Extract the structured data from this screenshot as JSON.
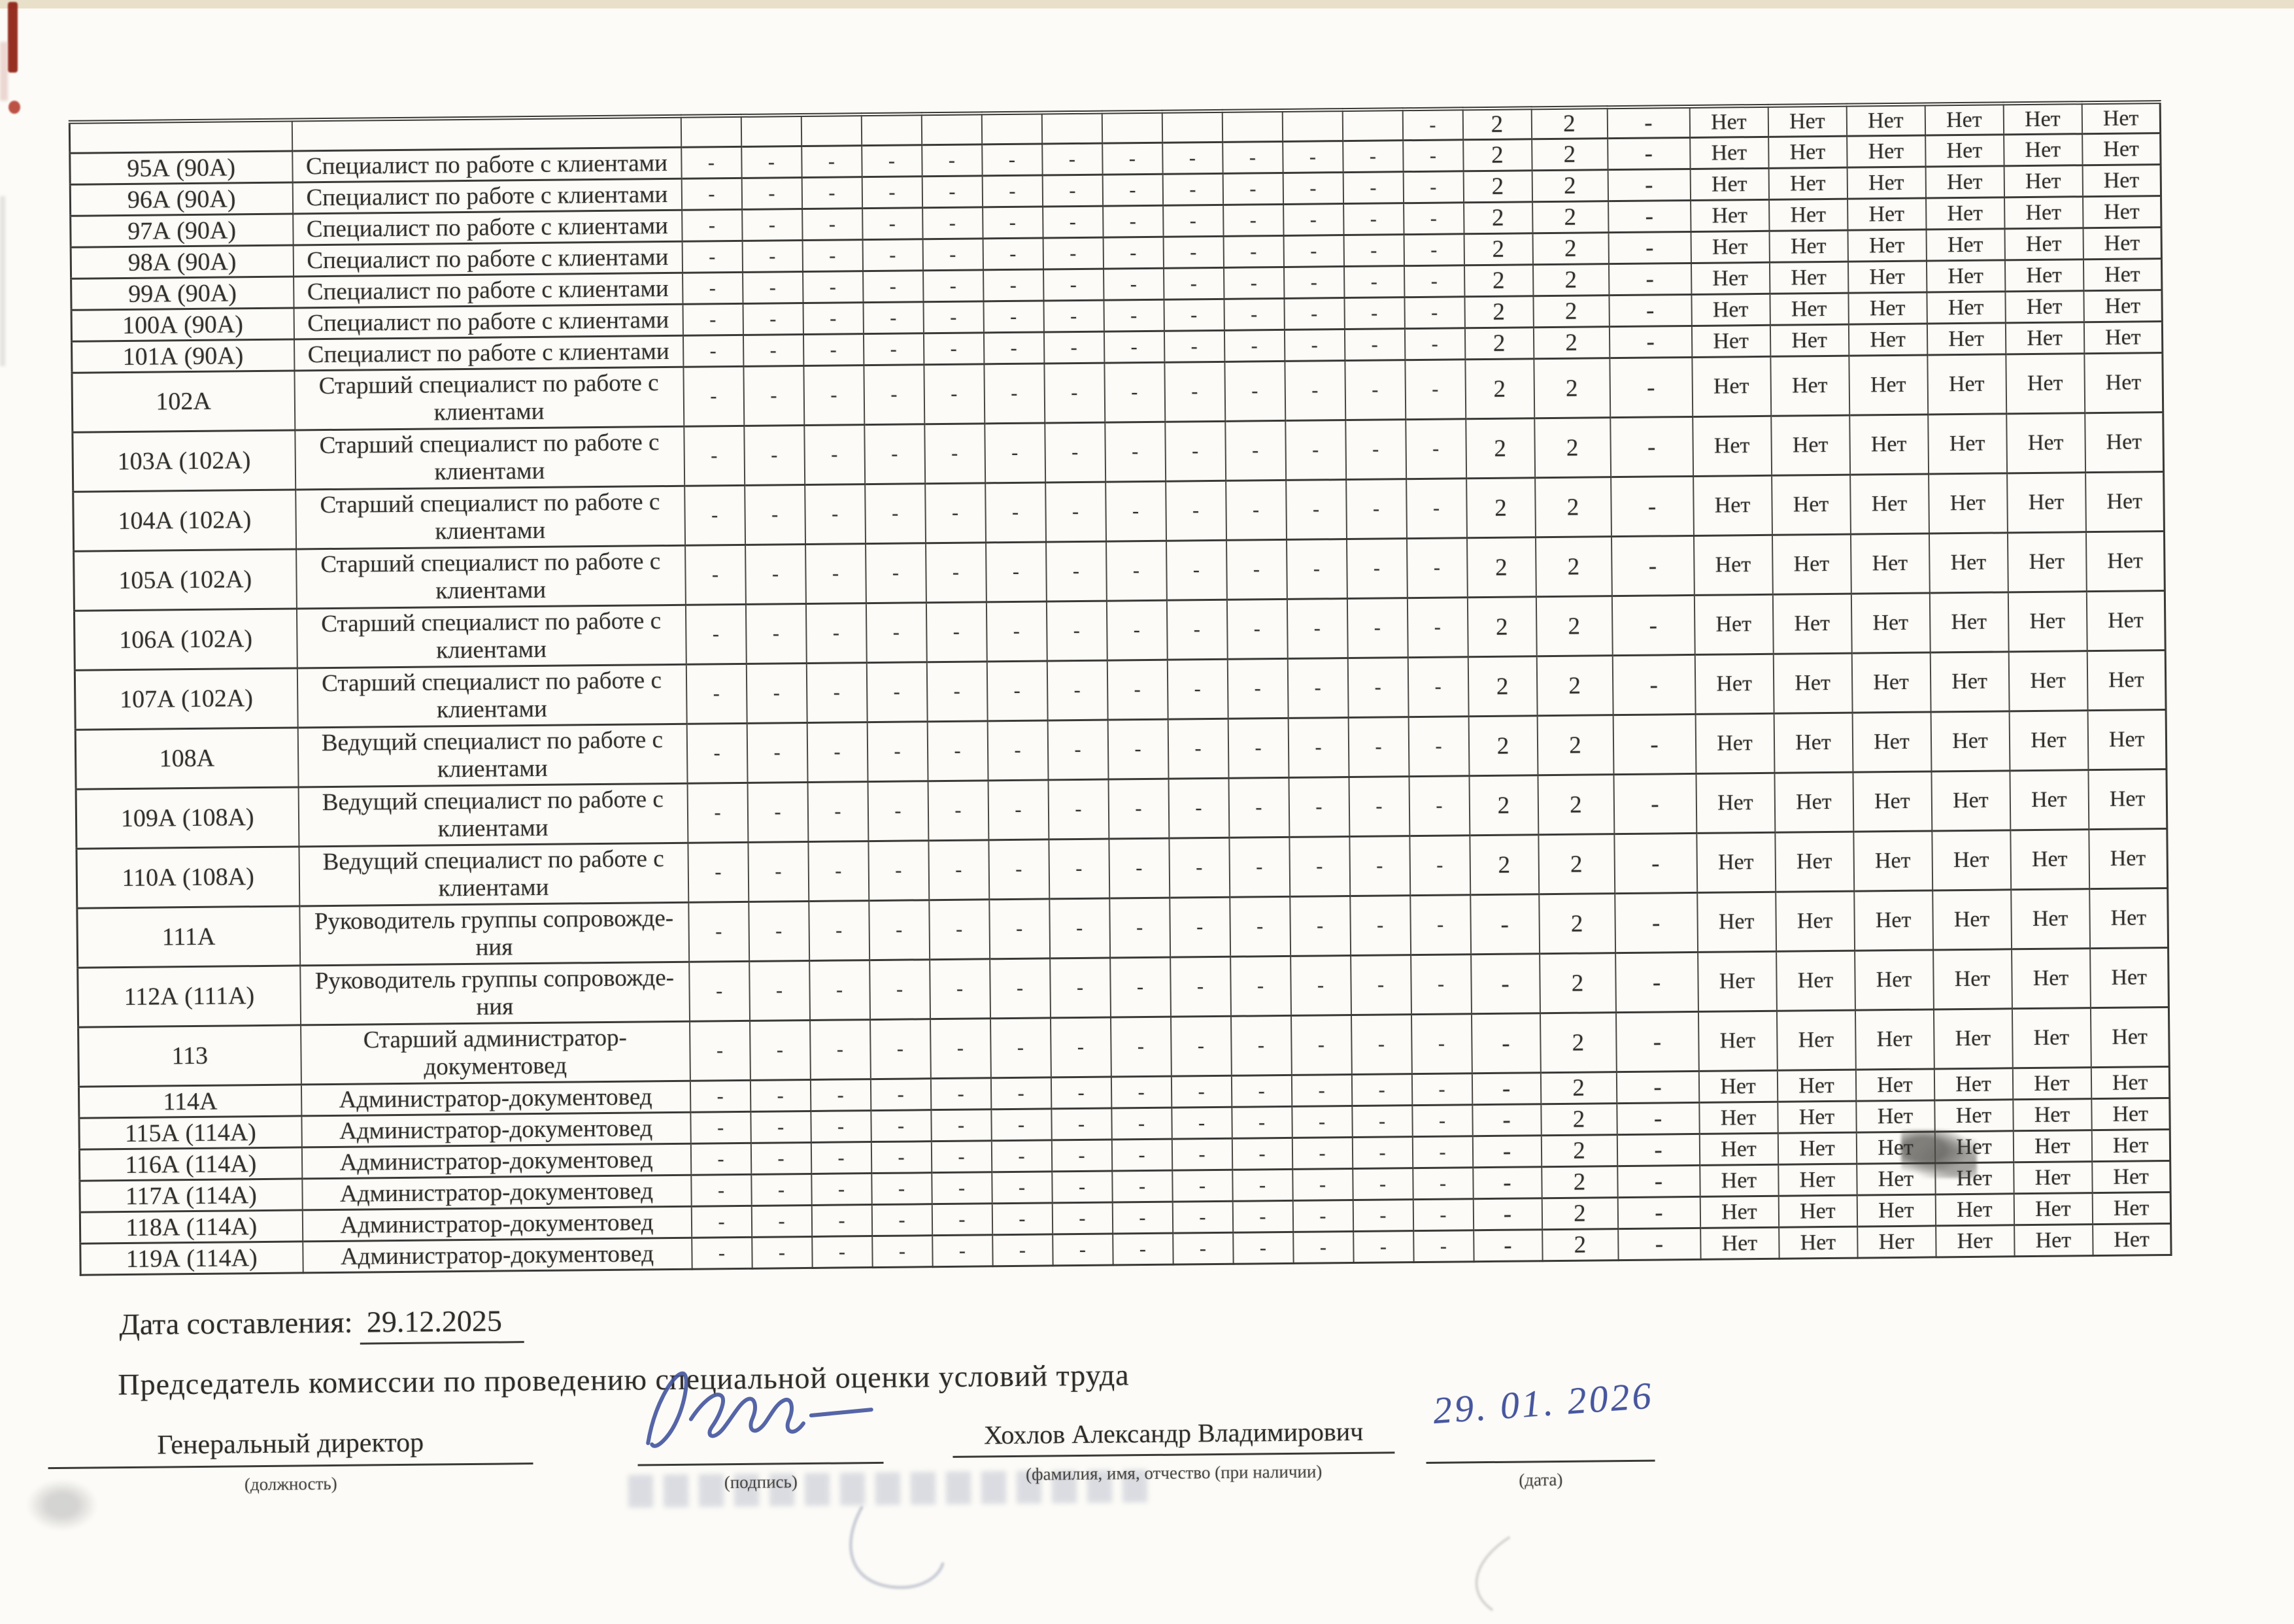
{
  "page": {
    "date_line": {
      "label": "Дата составления:",
      "value": "29.12.2025"
    },
    "chairman_heading": "Председатель комиссии по проведению специальной оценки условий труда",
    "signature_block": {
      "position_value": "Генеральный директор",
      "position_caption": "(должность)",
      "signature_caption": "(подпись)",
      "name_value": "Хохлов Александр Владимирович",
      "name_caption": "(фамилия, имя, отчество (при наличии)",
      "handwritten_date": "29. 01. 2026",
      "date_caption": "(дата)"
    },
    "ink_colors": {
      "handwriting_blue": "#47569f",
      "stamp_red": "#8e1f12"
    }
  },
  "table": {
    "rows": [
      {
        "num": "",
        "title_lines": [],
        "kind": "partial",
        "factors": [
          "",
          "",
          "",
          "",
          "",
          "",
          "",
          "",
          "",
          "",
          "",
          "",
          "-"
        ],
        "final": [
          "2",
          "2",
          "-"
        ],
        "benefits": [
          "Нет",
          "Нет",
          "Нет",
          "Нет",
          "Нет",
          "Нет"
        ]
      },
      {
        "num": "95А (90А)",
        "title_lines": [
          "Специалист по работе с клиентами"
        ],
        "kind": "short",
        "factors": [
          "-",
          "-",
          "-",
          "-",
          "-",
          "-",
          "-",
          "-",
          "-",
          "-",
          "-",
          "-",
          "-"
        ],
        "final": [
          "2",
          "2",
          "-"
        ],
        "benefits": [
          "Нет",
          "Нет",
          "Нет",
          "Нет",
          "Нет",
          "Нет"
        ]
      },
      {
        "num": "96А (90А)",
        "title_lines": [
          "Специалист по работе с клиентами"
        ],
        "kind": "short",
        "factors": [
          "-",
          "-",
          "-",
          "-",
          "-",
          "-",
          "-",
          "-",
          "-",
          "-",
          "-",
          "-",
          "-"
        ],
        "final": [
          "2",
          "2",
          "-"
        ],
        "benefits": [
          "Нет",
          "Нет",
          "Нет",
          "Нет",
          "Нет",
          "Нет"
        ]
      },
      {
        "num": "97А (90А)",
        "title_lines": [
          "Специалист по работе с клиентами"
        ],
        "kind": "short",
        "factors": [
          "-",
          "-",
          "-",
          "-",
          "-",
          "-",
          "-",
          "-",
          "-",
          "-",
          "-",
          "-",
          "-"
        ],
        "final": [
          "2",
          "2",
          "-"
        ],
        "benefits": [
          "Нет",
          "Нет",
          "Нет",
          "Нет",
          "Нет",
          "Нет"
        ]
      },
      {
        "num": "98А (90А)",
        "title_lines": [
          "Специалист по работе с клиентами"
        ],
        "kind": "short",
        "factors": [
          "-",
          "-",
          "-",
          "-",
          "-",
          "-",
          "-",
          "-",
          "-",
          "-",
          "-",
          "-",
          "-"
        ],
        "final": [
          "2",
          "2",
          "-"
        ],
        "benefits": [
          "Нет",
          "Нет",
          "Нет",
          "Нет",
          "Нет",
          "Нет"
        ]
      },
      {
        "num": "99А (90А)",
        "title_lines": [
          "Специалист по работе с клиентами"
        ],
        "kind": "short",
        "factors": [
          "-",
          "-",
          "-",
          "-",
          "-",
          "-",
          "-",
          "-",
          "-",
          "-",
          "-",
          "-",
          "-"
        ],
        "final": [
          "2",
          "2",
          "-"
        ],
        "benefits": [
          "Нет",
          "Нет",
          "Нет",
          "Нет",
          "Нет",
          "Нет"
        ]
      },
      {
        "num": "100А (90А)",
        "title_lines": [
          "Специалист по работе с клиентами"
        ],
        "kind": "short",
        "factors": [
          "-",
          "-",
          "-",
          "-",
          "-",
          "-",
          "-",
          "-",
          "-",
          "-",
          "-",
          "-",
          "-"
        ],
        "final": [
          "2",
          "2",
          "-"
        ],
        "benefits": [
          "Нет",
          "Нет",
          "Нет",
          "Нет",
          "Нет",
          "Нет"
        ]
      },
      {
        "num": "101А (90А)",
        "title_lines": [
          "Специалист по работе с клиентами"
        ],
        "kind": "short",
        "factors": [
          "-",
          "-",
          "-",
          "-",
          "-",
          "-",
          "-",
          "-",
          "-",
          "-",
          "-",
          "-",
          "-"
        ],
        "final": [
          "2",
          "2",
          "-"
        ],
        "benefits": [
          "Нет",
          "Нет",
          "Нет",
          "Нет",
          "Нет",
          "Нет"
        ]
      },
      {
        "num": "102А",
        "title_lines": [
          "Старший специалист по работе с",
          "клиентами"
        ],
        "kind": "tall",
        "factors": [
          "-",
          "-",
          "-",
          "-",
          "-",
          "-",
          "-",
          "-",
          "-",
          "-",
          "-",
          "-",
          "-"
        ],
        "final": [
          "2",
          "2",
          "-"
        ],
        "benefits": [
          "Нет",
          "Нет",
          "Нет",
          "Нет",
          "Нет",
          "Нет"
        ]
      },
      {
        "num": "103А (102А)",
        "title_lines": [
          "Старший специалист по работе с",
          "клиентами"
        ],
        "kind": "tall",
        "factors": [
          "-",
          "-",
          "-",
          "-",
          "-",
          "-",
          "-",
          "-",
          "-",
          "-",
          "-",
          "-",
          "-"
        ],
        "final": [
          "2",
          "2",
          "-"
        ],
        "benefits": [
          "Нет",
          "Нет",
          "Нет",
          "Нет",
          "Нет",
          "Нет"
        ]
      },
      {
        "num": "104А (102А)",
        "title_lines": [
          "Старший специалист по работе с",
          "клиентами"
        ],
        "kind": "tall",
        "factors": [
          "-",
          "-",
          "-",
          "-",
          "-",
          "-",
          "-",
          "-",
          "-",
          "-",
          "-",
          "-",
          "-"
        ],
        "final": [
          "2",
          "2",
          "-"
        ],
        "benefits": [
          "Нет",
          "Нет",
          "Нет",
          "Нет",
          "Нет",
          "Нет"
        ]
      },
      {
        "num": "105А (102А)",
        "title_lines": [
          "Старший специалист по работе с",
          "клиентами"
        ],
        "kind": "tall",
        "factors": [
          "-",
          "-",
          "-",
          "-",
          "-",
          "-",
          "-",
          "-",
          "-",
          "-",
          "-",
          "-",
          "-"
        ],
        "final": [
          "2",
          "2",
          "-"
        ],
        "benefits": [
          "Нет",
          "Нет",
          "Нет",
          "Нет",
          "Нет",
          "Нет"
        ]
      },
      {
        "num": "106А (102А)",
        "title_lines": [
          "Старший специалист по работе с",
          "клиентами"
        ],
        "kind": "tall",
        "factors": [
          "-",
          "-",
          "-",
          "-",
          "-",
          "-",
          "-",
          "-",
          "-",
          "-",
          "-",
          "-",
          "-"
        ],
        "final": [
          "2",
          "2",
          "-"
        ],
        "benefits": [
          "Нет",
          "Нет",
          "Нет",
          "Нет",
          "Нет",
          "Нет"
        ]
      },
      {
        "num": "107А (102А)",
        "title_lines": [
          "Старший специалист по работе с",
          "клиентами"
        ],
        "kind": "tall",
        "factors": [
          "-",
          "-",
          "-",
          "-",
          "-",
          "-",
          "-",
          "-",
          "-",
          "-",
          "-",
          "-",
          "-"
        ],
        "final": [
          "2",
          "2",
          "-"
        ],
        "benefits": [
          "Нет",
          "Нет",
          "Нет",
          "Нет",
          "Нет",
          "Нет"
        ]
      },
      {
        "num": "108А",
        "title_lines": [
          "Ведущий специалист по работе с",
          "клиентами"
        ],
        "kind": "tall",
        "factors": [
          "-",
          "-",
          "-",
          "-",
          "-",
          "-",
          "-",
          "-",
          "-",
          "-",
          "-",
          "-",
          "-"
        ],
        "final": [
          "2",
          "2",
          "-"
        ],
        "benefits": [
          "Нет",
          "Нет",
          "Нет",
          "Нет",
          "Нет",
          "Нет"
        ]
      },
      {
        "num": "109А (108А)",
        "title_lines": [
          "Ведущий специалист по работе с",
          "клиентами"
        ],
        "kind": "tall",
        "factors": [
          "-",
          "-",
          "-",
          "-",
          "-",
          "-",
          "-",
          "-",
          "-",
          "-",
          "-",
          "-",
          "-"
        ],
        "final": [
          "2",
          "2",
          "-"
        ],
        "benefits": [
          "Нет",
          "Нет",
          "Нет",
          "Нет",
          "Нет",
          "Нет"
        ]
      },
      {
        "num": "110А (108А)",
        "title_lines": [
          "Ведущий специалист по работе с",
          "клиентами"
        ],
        "kind": "tall",
        "factors": [
          "-",
          "-",
          "-",
          "-",
          "-",
          "-",
          "-",
          "-",
          "-",
          "-",
          "-",
          "-",
          "-"
        ],
        "final": [
          "2",
          "2",
          "-"
        ],
        "benefits": [
          "Нет",
          "Нет",
          "Нет",
          "Нет",
          "Нет",
          "Нет"
        ]
      },
      {
        "num": "111А",
        "title_lines": [
          "Руководитель группы сопровожде-",
          "ния"
        ],
        "kind": "tall",
        "factors": [
          "-",
          "-",
          "-",
          "-",
          "-",
          "-",
          "-",
          "-",
          "-",
          "-",
          "-",
          "-",
          "-"
        ],
        "final": [
          "-",
          "2",
          "-"
        ],
        "benefits": [
          "Нет",
          "Нет",
          "Нет",
          "Нет",
          "Нет",
          "Нет"
        ]
      },
      {
        "num": "112А (111А)",
        "title_lines": [
          "Руководитель группы сопровожде-",
          "ния"
        ],
        "kind": "tall",
        "factors": [
          "-",
          "-",
          "-",
          "-",
          "-",
          "-",
          "-",
          "-",
          "-",
          "-",
          "-",
          "-",
          "-"
        ],
        "final": [
          "-",
          "2",
          "-"
        ],
        "benefits": [
          "Нет",
          "Нет",
          "Нет",
          "Нет",
          "Нет",
          "Нет"
        ]
      },
      {
        "num": "113",
        "title_lines": [
          "Старший администратор-",
          "документовед"
        ],
        "kind": "tall",
        "factors": [
          "-",
          "-",
          "-",
          "-",
          "-",
          "-",
          "-",
          "-",
          "-",
          "-",
          "-",
          "-",
          "-"
        ],
        "final": [
          "-",
          "2",
          "-"
        ],
        "benefits": [
          "Нет",
          "Нет",
          "Нет",
          "Нет",
          "Нет",
          "Нет"
        ]
      },
      {
        "num": "114А",
        "title_lines": [
          "Администратор-документовед"
        ],
        "kind": "short",
        "factors": [
          "-",
          "-",
          "-",
          "-",
          "-",
          "-",
          "-",
          "-",
          "-",
          "-",
          "-",
          "-",
          "-"
        ],
        "final": [
          "-",
          "2",
          "-"
        ],
        "benefits": [
          "Нет",
          "Нет",
          "Нет",
          "Нет",
          "Нет",
          "Нет"
        ]
      },
      {
        "num": "115А (114А)",
        "title_lines": [
          "Администратор-документовед"
        ],
        "kind": "short",
        "factors": [
          "-",
          "-",
          "-",
          "-",
          "-",
          "-",
          "-",
          "-",
          "-",
          "-",
          "-",
          "-",
          "-"
        ],
        "final": [
          "-",
          "2",
          "-"
        ],
        "benefits": [
          "Нет",
          "Нет",
          "Нет",
          "Нет",
          "Нет",
          "Нет"
        ]
      },
      {
        "num": "116А (114А)",
        "title_lines": [
          "Администратор-документовед"
        ],
        "kind": "short",
        "factors": [
          "-",
          "-",
          "-",
          "-",
          "-",
          "-",
          "-",
          "-",
          "-",
          "-",
          "-",
          "-",
          "-"
        ],
        "final": [
          "-",
          "2",
          "-"
        ],
        "benefits": [
          "Нет",
          "Нет",
          "Нет",
          "Нет",
          "Нет",
          "Нет"
        ]
      },
      {
        "num": "117А (114А)",
        "title_lines": [
          "Администратор-документовед"
        ],
        "kind": "short",
        "factors": [
          "-",
          "-",
          "-",
          "-",
          "-",
          "-",
          "-",
          "-",
          "-",
          "-",
          "-",
          "-",
          "-"
        ],
        "final": [
          "-",
          "2",
          "-"
        ],
        "benefits": [
          "Нет",
          "Нет",
          "Нет",
          "Нет",
          "Нет",
          "Нет"
        ]
      },
      {
        "num": "118А (114А)",
        "title_lines": [
          "Администратор-документовед"
        ],
        "kind": "short",
        "factors": [
          "-",
          "-",
          "-",
          "-",
          "-",
          "-",
          "-",
          "-",
          "-",
          "-",
          "-",
          "-",
          "-"
        ],
        "final": [
          "-",
          "2",
          "-"
        ],
        "benefits": [
          "Нет",
          "Нет",
          "Нет",
          "Нет",
          "Нет",
          "Нет"
        ]
      },
      {
        "num": "119А (114А)",
        "title_lines": [
          "Администратор-документовед"
        ],
        "kind": "short",
        "factors": [
          "-",
          "-",
          "-",
          "-",
          "-",
          "-",
          "-",
          "-",
          "-",
          "-",
          "-",
          "-",
          "-"
        ],
        "final": [
          "-",
          "2",
          "-"
        ],
        "benefits": [
          "Нет",
          "Нет",
          "Нет",
          "Нет",
          "Нет",
          "Нет"
        ]
      }
    ]
  }
}
